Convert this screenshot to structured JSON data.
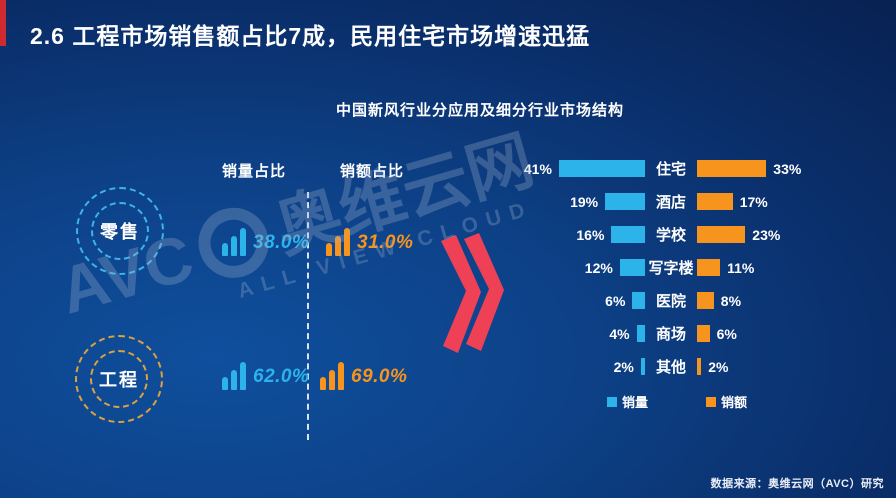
{
  "slide": {
    "section_title": "2.6  工程市场销售额占比7成，民用住宅市场增速迅猛",
    "chart_title": "中国新风行业分应用及细分行业市场结构",
    "source_note": "数据来源：奥维云网（AVC）研究"
  },
  "left_panel": {
    "column_headers": {
      "volume": "销量占比",
      "amount": "销额占比"
    },
    "segments": [
      {
        "label": "零售",
        "volume_share": "38.0%",
        "amount_share": "31.0%"
      },
      {
        "label": "工程",
        "volume_share": "62.0%",
        "amount_share": "69.0%"
      }
    ]
  },
  "chart_data": {
    "type": "bar",
    "variant": "butterfly",
    "title": "中国新风行业分应用及细分行业市场结构",
    "categories": [
      "住宅",
      "酒店",
      "学校",
      "写字楼",
      "医院",
      "商场",
      "其他"
    ],
    "series": [
      {
        "name": "销量",
        "color": "#2bb3ea",
        "values": [
          41,
          19,
          16,
          12,
          6,
          4,
          2
        ]
      },
      {
        "name": "销额",
        "color": "#f7941e",
        "values": [
          33,
          17,
          23,
          11,
          8,
          6,
          2
        ]
      }
    ],
    "value_suffix": "%",
    "legend_position": "bottom",
    "xlim_left": [
      0,
      45
    ],
    "xlim_right": [
      0,
      45
    ]
  },
  "watermark": {
    "brand_latin": "AVC",
    "brand_cn": "奥维云网",
    "tagline": "ALL VIEW CLOUD"
  },
  "colors": {
    "accent_red": "#cf2a2f",
    "volume_blue": "#2bb3ea",
    "amount_orange": "#f7941e",
    "chevron_red": "#ee4156"
  }
}
